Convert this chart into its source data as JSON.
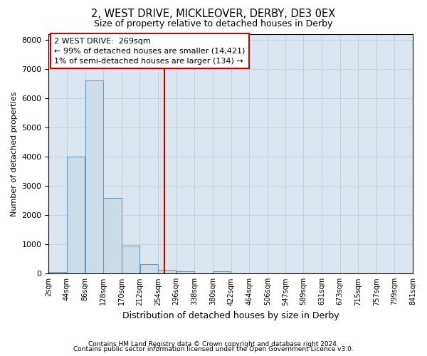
{
  "title": "2, WEST DRIVE, MICKLEOVER, DERBY, DE3 0EX",
  "subtitle": "Size of property relative to detached houses in Derby",
  "xlabel": "Distribution of detached houses by size in Derby",
  "ylabel": "Number of detached properties",
  "footer1": "Contains HM Land Registry data © Crown copyright and database right 2024.",
  "footer2": "Contains public sector information licensed under the Open Government Licence v3.0.",
  "bar_color": "#ccdce8",
  "bar_edge_color": "#6699bb",
  "vline_color": "#cc0000",
  "vline_x": 269,
  "annotation_text1": "2 WEST DRIVE:  269sqm",
  "annotation_text2": "← 99% of detached houses are smaller (14,421)",
  "annotation_text3": "1% of semi-detached houses are larger (134) →",
  "annotation_box_color": "#cc0000",
  "annotation_bg": "#ffffff",
  "grid_color": "#c5cfe0",
  "background_color": "#dce6f0",
  "bins": [
    2,
    44,
    86,
    128,
    170,
    212,
    254,
    296,
    338,
    380,
    422,
    464,
    506,
    547,
    589,
    631,
    673,
    715,
    757,
    799,
    841
  ],
  "counts": [
    60,
    4000,
    6600,
    2600,
    950,
    330,
    120,
    80,
    0,
    80,
    0,
    0,
    0,
    0,
    0,
    0,
    0,
    0,
    0,
    0
  ],
  "ylim": [
    0,
    8200
  ],
  "yticks": [
    0,
    1000,
    2000,
    3000,
    4000,
    5000,
    6000,
    7000,
    8000
  ]
}
